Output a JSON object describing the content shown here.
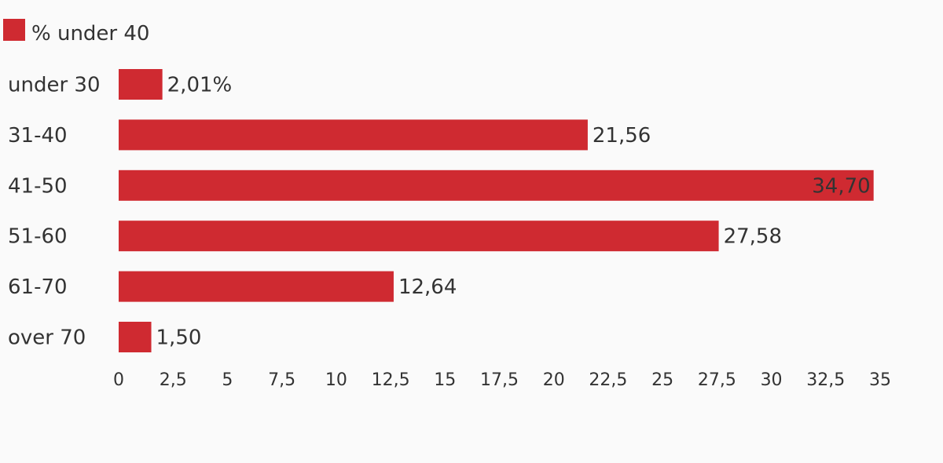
{
  "chart_data": {
    "type": "bar",
    "orientation": "horizontal",
    "categories": [
      "under 30",
      "31-40",
      "41-50",
      "51-60",
      "61-70",
      "over 70"
    ],
    "series": [
      {
        "name": "% under 40",
        "color": "#cf2a31",
        "values": [
          2.01,
          21.56,
          34.7,
          27.58,
          12.64,
          1.5
        ],
        "labels": [
          "2,01%",
          "21,56",
          "34,70",
          "27,58",
          "12,64",
          "1,50"
        ]
      }
    ],
    "xlim": [
      0,
      35
    ],
    "x_ticks": [
      0,
      2.5,
      5,
      7.5,
      10,
      12.5,
      15,
      17.5,
      20,
      22.5,
      25,
      27.5,
      30,
      32.5,
      35
    ],
    "x_tick_labels": [
      "0",
      "2,5",
      "5",
      "7,5",
      "10",
      "12,5",
      "15",
      "17,5",
      "20",
      "22,5",
      "25",
      "27,5",
      "30",
      "32,5",
      "35"
    ],
    "legend": {
      "position": "top-left"
    },
    "grid": false
  }
}
